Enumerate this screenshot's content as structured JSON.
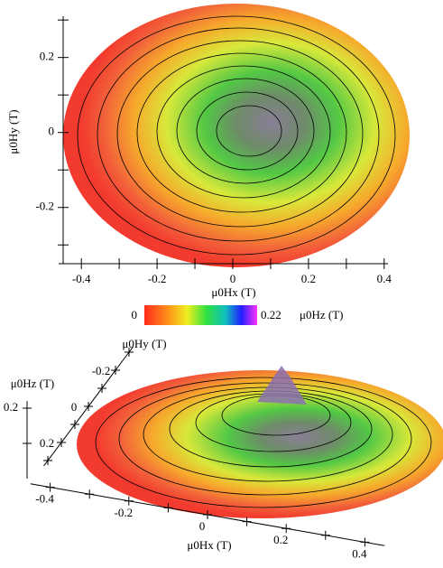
{
  "chart_data": [
    {
      "type": "contour",
      "xlabel": "μ0Hx (T)",
      "ylabel": "μ0Hy (T)",
      "xlim": [
        -0.46,
        0.41
      ],
      "ylim": [
        -0.35,
        0.31
      ],
      "xticks": [
        -0.4,
        -0.2,
        0,
        0.2,
        0.4
      ],
      "xminor": [
        -0.3,
        -0.1,
        0.1,
        0.3
      ],
      "yticks": [
        -0.2,
        0,
        0.2
      ],
      "yminor": [
        -0.3,
        -0.1,
        0.1,
        0.3
      ],
      "colorbar": {
        "lim": [
          0,
          0.22
        ],
        "label": "μ0Hz (T)"
      }
    },
    {
      "type": "surface3d",
      "xlabel": "μ0Hx (T)",
      "ylabel": "μ0Hy (T)",
      "zlabel": "μ0Hz (T)",
      "xlim": [
        -0.45,
        0.45
      ],
      "ylim": [
        -0.33,
        0.33
      ],
      "zlim": [
        0,
        0.22
      ],
      "xticks": [
        -0.4,
        -0.2,
        0,
        0.2,
        0.4
      ],
      "xminor": [
        -0.3,
        -0.1,
        0.1,
        0.3
      ],
      "yticks": [
        -0.2,
        0,
        0.2
      ],
      "yminor": [
        -0.3,
        -0.1,
        0.1,
        0.3
      ],
      "zticks": [
        0.2
      ],
      "zminor": [
        0.1
      ]
    }
  ]
}
